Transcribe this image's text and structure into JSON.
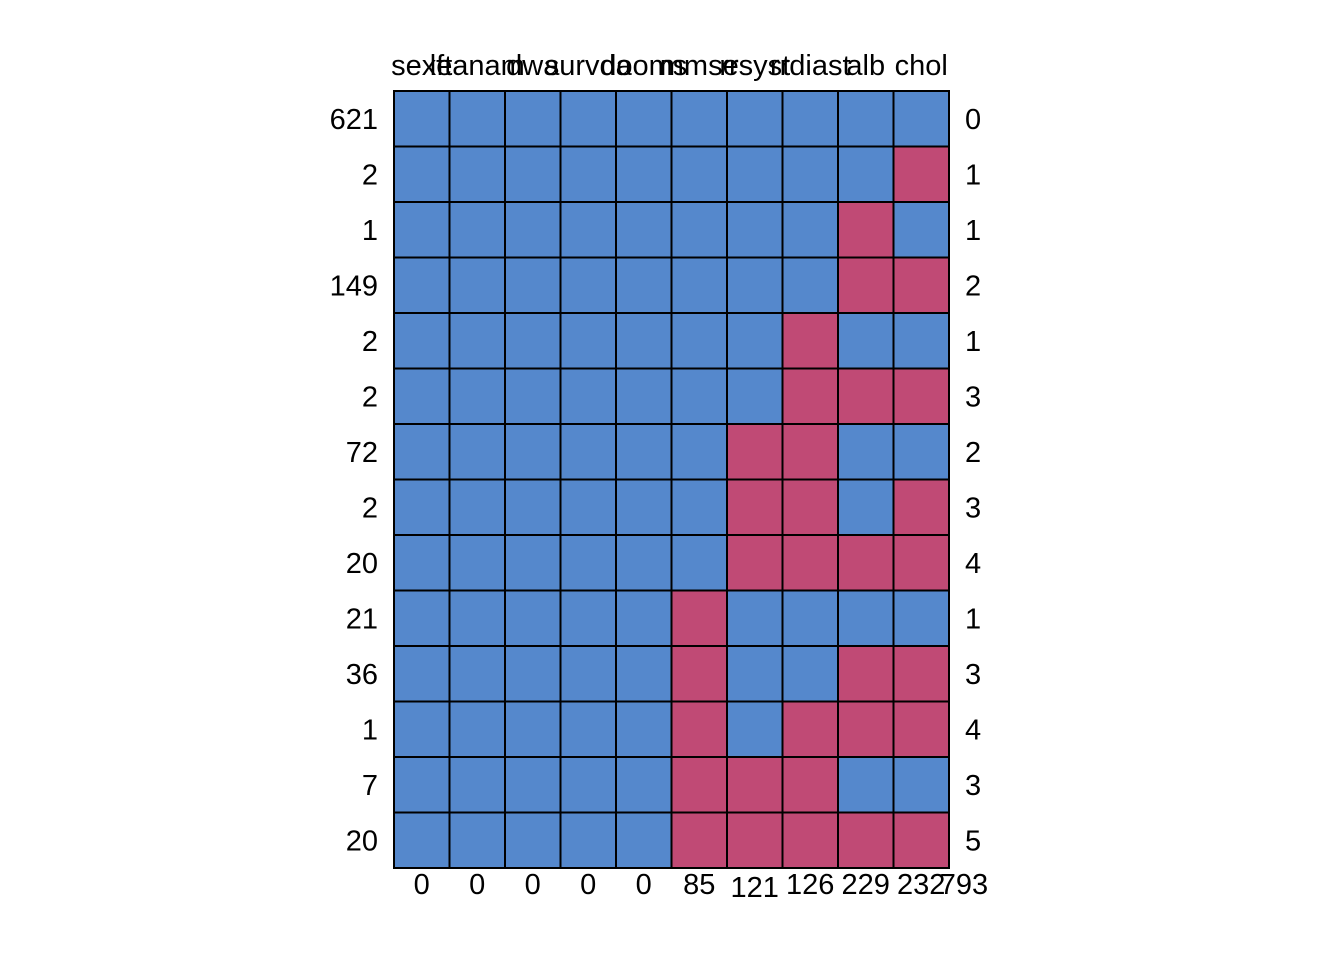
{
  "chart_data": {
    "type": "heatmap",
    "title": "",
    "columns": [
      "sexe",
      "lftanam",
      "dwa",
      "survda",
      "dooms",
      "mmse",
      "rrsyst",
      "rrdiast",
      "alb",
      "chol"
    ],
    "row_counts": [
      621,
      2,
      1,
      149,
      2,
      2,
      72,
      2,
      20,
      21,
      36,
      1,
      7,
      20
    ],
    "row_missing_counts": [
      0,
      1,
      1,
      2,
      1,
      3,
      2,
      3,
      4,
      1,
      3,
      4,
      3,
      5
    ],
    "column_missing_counts": [
      0,
      0,
      0,
      0,
      0,
      85,
      121,
      126,
      229,
      232
    ],
    "total_missing": 793,
    "patterns": [
      [
        1,
        1,
        1,
        1,
        1,
        1,
        1,
        1,
        1,
        1
      ],
      [
        1,
        1,
        1,
        1,
        1,
        1,
        1,
        1,
        1,
        0
      ],
      [
        1,
        1,
        1,
        1,
        1,
        1,
        1,
        1,
        0,
        1
      ],
      [
        1,
        1,
        1,
        1,
        1,
        1,
        1,
        1,
        0,
        0
      ],
      [
        1,
        1,
        1,
        1,
        1,
        1,
        1,
        0,
        1,
        1
      ],
      [
        1,
        1,
        1,
        1,
        1,
        1,
        1,
        0,
        0,
        0
      ],
      [
        1,
        1,
        1,
        1,
        1,
        1,
        0,
        0,
        1,
        1
      ],
      [
        1,
        1,
        1,
        1,
        1,
        1,
        0,
        0,
        1,
        0
      ],
      [
        1,
        1,
        1,
        1,
        1,
        1,
        0,
        0,
        0,
        0
      ],
      [
        1,
        1,
        1,
        1,
        1,
        0,
        1,
        1,
        1,
        1
      ],
      [
        1,
        1,
        1,
        1,
        1,
        0,
        1,
        1,
        0,
        0
      ],
      [
        1,
        1,
        1,
        1,
        1,
        0,
        1,
        0,
        0,
        0
      ],
      [
        1,
        1,
        1,
        1,
        1,
        0,
        0,
        0,
        1,
        1
      ],
      [
        1,
        1,
        1,
        1,
        1,
        0,
        0,
        0,
        0,
        0
      ]
    ],
    "colors": {
      "observed": "#5588CC",
      "missing": "#C04A75",
      "border": "#000000"
    }
  }
}
